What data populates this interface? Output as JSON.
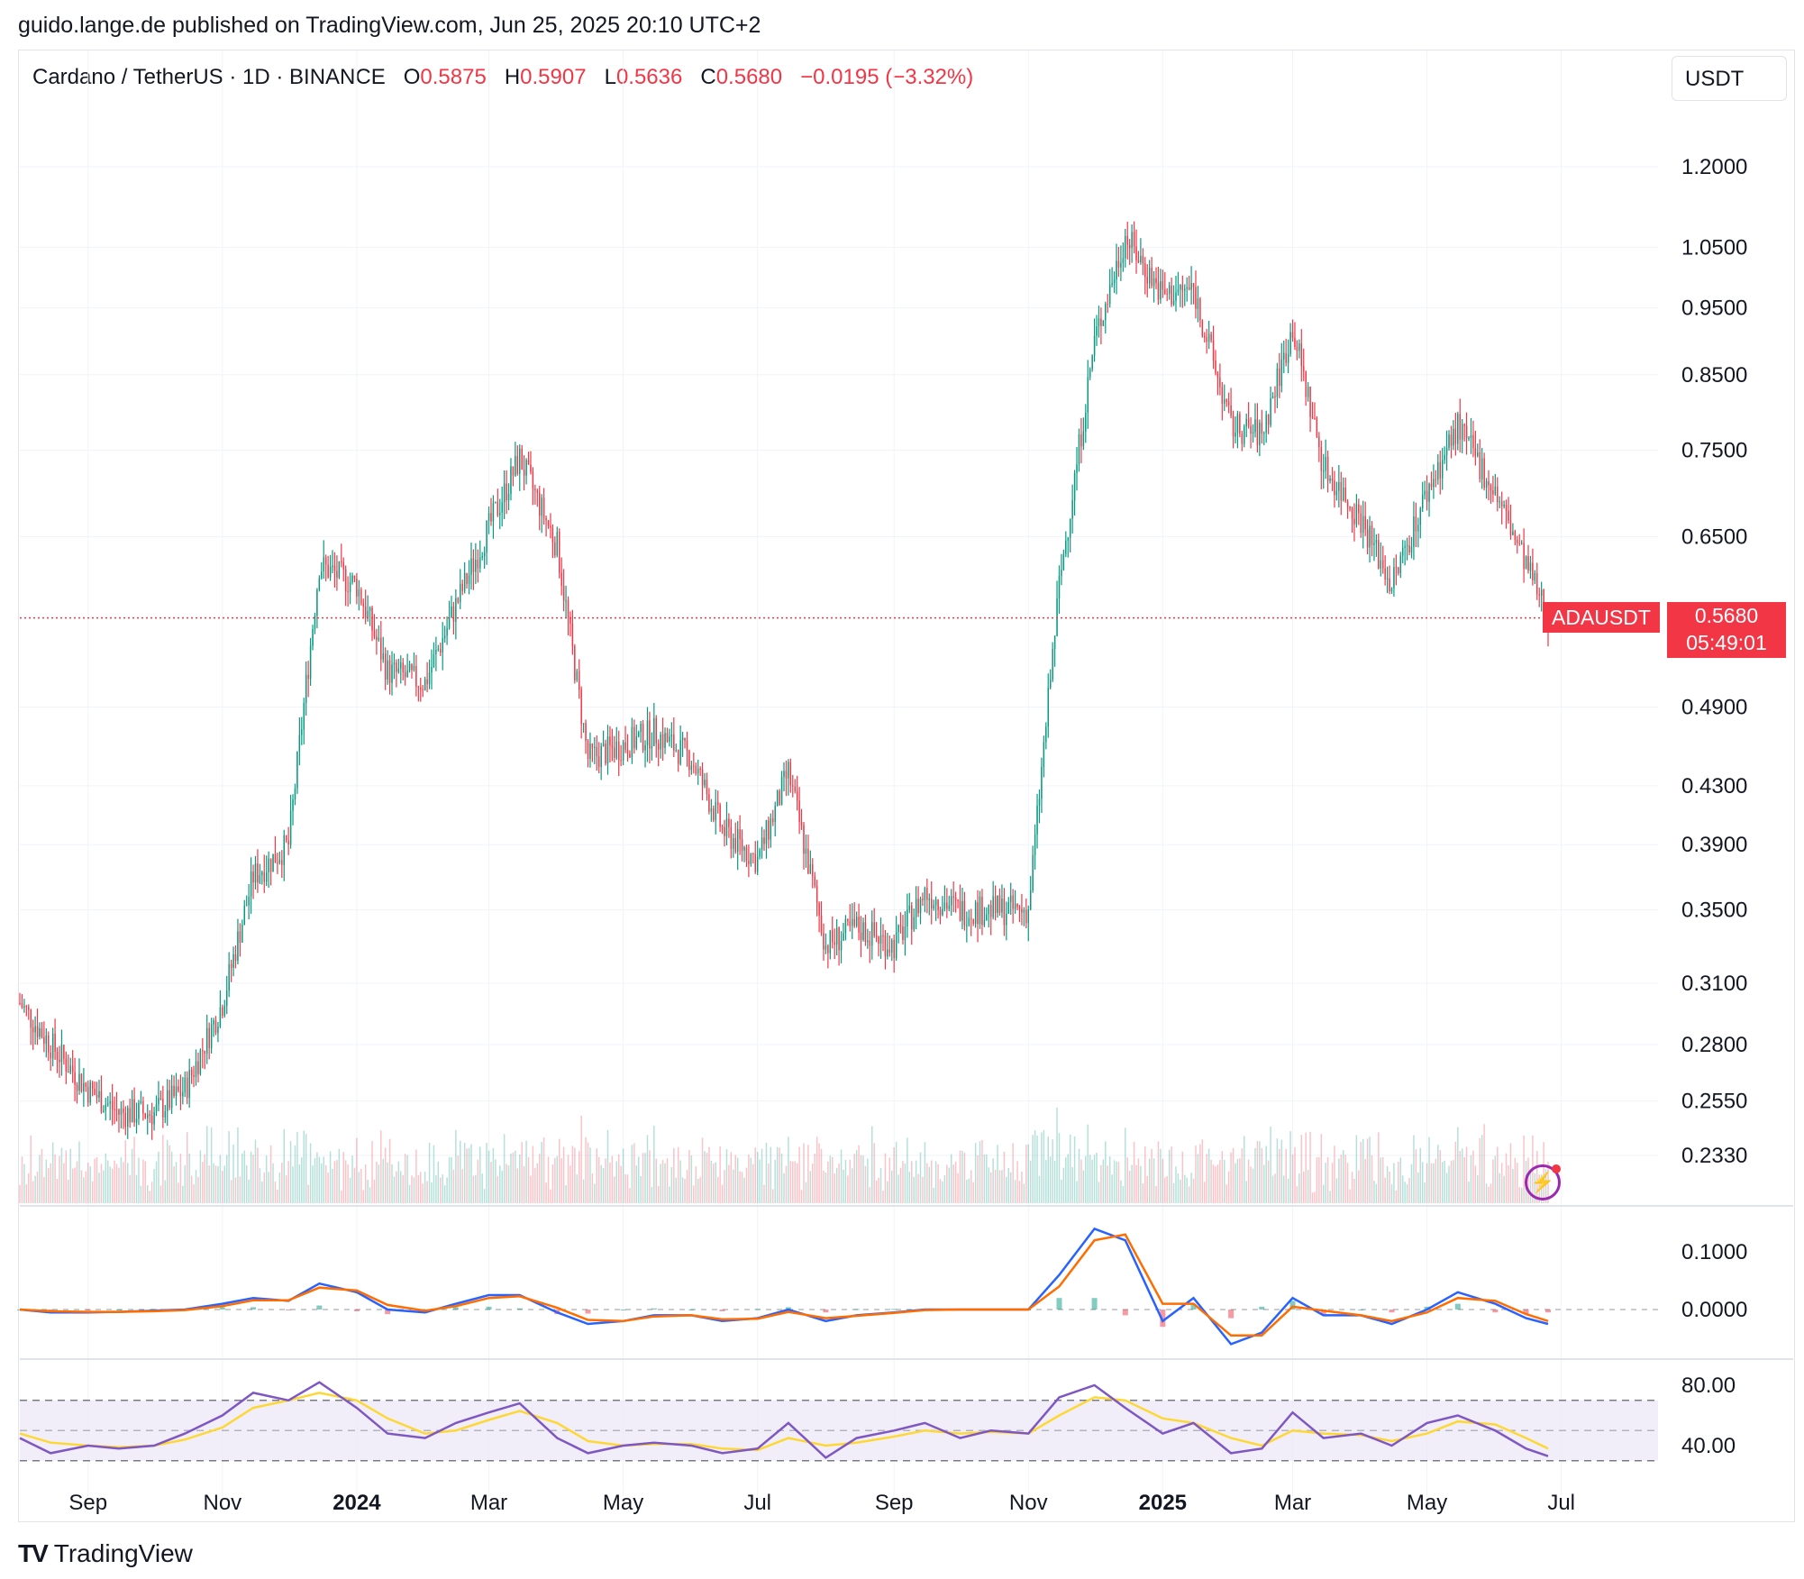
{
  "publisher": "guido.lange.de published on TradingView.com, Jun 25, 2025 20:10 UTC+2",
  "header": {
    "symbol": "Cardano / TetherUS · 1D · BINANCE",
    "open_label": "O",
    "open": "0.5875",
    "high_label": "H",
    "high": "0.5907",
    "low_label": "L",
    "low": "0.5636",
    "close_label": "C",
    "close": "0.5680",
    "change": "−0.0195 (−3.32%)"
  },
  "currency": "USDT",
  "last_price": {
    "symbol": "ADAUSDT",
    "price": "0.5680",
    "countdown": "05:49:01"
  },
  "brand": "TradingView",
  "colors": {
    "up": "#089981",
    "down": "#f23645",
    "macd": "#2962ff",
    "signal": "#ff6d00",
    "rsi": "#7e57c2",
    "rsi_ma": "#fdd835",
    "rsi_band": "#ede7f6"
  },
  "chart_data": [
    {
      "type": "candlestick",
      "title": "Cardano / TetherUS · 1D · BINANCE",
      "y_scale": "log",
      "y_ticks": [
        "1.2000",
        "1.0500",
        "0.9500",
        "0.8500",
        "0.7500",
        "0.6500",
        "0.4900",
        "0.4300",
        "0.3900",
        "0.3500",
        "0.3100",
        "0.2800",
        "0.2550",
        "0.2330"
      ],
      "x_ticks": [
        "Sep",
        "Nov",
        "2024",
        "Mar",
        "May",
        "Jul",
        "Sep",
        "Nov",
        "2025",
        "Mar",
        "May",
        "Jul"
      ],
      "x": [
        "2023-08-01",
        "2023-08-15",
        "2023-09-01",
        "2023-09-15",
        "2023-10-01",
        "2023-10-15",
        "2023-11-01",
        "2023-11-15",
        "2023-12-01",
        "2023-12-15",
        "2024-01-01",
        "2024-01-15",
        "2024-02-01",
        "2024-02-15",
        "2024-03-01",
        "2024-03-15",
        "2024-04-01",
        "2024-04-15",
        "2024-05-01",
        "2024-05-15",
        "2024-06-01",
        "2024-06-15",
        "2024-07-01",
        "2024-07-15",
        "2024-08-01",
        "2024-08-15",
        "2024-09-01",
        "2024-09-15",
        "2024-10-01",
        "2024-10-15",
        "2024-11-01",
        "2024-11-15",
        "2024-12-01",
        "2024-12-15",
        "2025-01-01",
        "2025-01-15",
        "2025-02-01",
        "2025-02-15",
        "2025-03-01",
        "2025-03-15",
        "2025-04-01",
        "2025-04-15",
        "2025-05-01",
        "2025-05-15",
        "2025-06-01",
        "2025-06-15",
        "2025-06-25"
      ],
      "close": [
        0.3,
        0.28,
        0.26,
        0.25,
        0.25,
        0.26,
        0.3,
        0.37,
        0.39,
        0.62,
        0.6,
        0.52,
        0.51,
        0.58,
        0.66,
        0.74,
        0.64,
        0.45,
        0.46,
        0.47,
        0.45,
        0.4,
        0.38,
        0.44,
        0.33,
        0.34,
        0.33,
        0.36,
        0.35,
        0.35,
        0.35,
        0.6,
        0.9,
        1.07,
        0.97,
        0.98,
        0.78,
        0.77,
        0.92,
        0.73,
        0.67,
        0.6,
        0.7,
        0.78,
        0.7,
        0.62,
        0.568
      ],
      "last": 0.568
    },
    {
      "type": "histogram",
      "title": "Volume",
      "note": "volume bars shown without scale"
    },
    {
      "type": "line",
      "title": "MACD",
      "y_ticks": [
        "0.1000",
        "0.0000"
      ],
      "series": [
        {
          "values": [
            0.0,
            -0.005,
            -0.005,
            -0.004,
            -0.002,
            0.0,
            0.01,
            0.02,
            0.015,
            0.045,
            0.03,
            0.0,
            -0.005,
            0.01,
            0.025,
            0.025,
            -0.005,
            -0.025,
            -0.02,
            -0.01,
            -0.01,
            -0.02,
            -0.015,
            0.0,
            -0.02,
            -0.01,
            -0.005,
            0.0,
            0.0,
            0.0,
            0.0,
            0.06,
            0.14,
            0.12,
            -0.02,
            0.02,
            -0.06,
            -0.04,
            0.02,
            -0.01,
            -0.01,
            -0.025,
            0.0,
            0.03,
            0.01,
            -0.015,
            -0.025
          ]
        },
        {
          "values": [
            0.0,
            -0.003,
            -0.004,
            -0.004,
            -0.003,
            -0.001,
            0.006,
            0.016,
            0.016,
            0.038,
            0.033,
            0.008,
            -0.002,
            0.006,
            0.02,
            0.023,
            0.003,
            -0.018,
            -0.02,
            -0.012,
            -0.01,
            -0.017,
            -0.016,
            -0.004,
            -0.015,
            -0.011,
            -0.006,
            -0.001,
            0.0,
            0.0,
            0.0,
            0.04,
            0.12,
            0.13,
            0.01,
            0.01,
            -0.045,
            -0.045,
            0.005,
            -0.002,
            -0.01,
            -0.02,
            -0.005,
            0.02,
            0.015,
            -0.008,
            -0.02
          ]
        }
      ]
    },
    {
      "type": "line",
      "title": "RSI",
      "y_ticks": [
        "80.00",
        "40.00"
      ],
      "band": [
        30,
        70
      ],
      "series": [
        {
          "values": [
            45,
            35,
            40,
            38,
            40,
            48,
            60,
            75,
            70,
            82,
            65,
            48,
            45,
            55,
            62,
            68,
            45,
            35,
            40,
            42,
            40,
            35,
            38,
            55,
            32,
            45,
            50,
            55,
            45,
            50,
            48,
            72,
            80,
            65,
            48,
            55,
            35,
            38,
            62,
            45,
            48,
            40,
            55,
            60,
            50,
            38,
            33
          ]
        },
        {
          "values": [
            48,
            42,
            40,
            39,
            40,
            44,
            52,
            65,
            70,
            75,
            70,
            58,
            48,
            50,
            57,
            63,
            55,
            43,
            40,
            41,
            41,
            38,
            37,
            45,
            40,
            42,
            46,
            50,
            48,
            49,
            48,
            60,
            72,
            70,
            58,
            55,
            45,
            40,
            50,
            48,
            47,
            43,
            48,
            56,
            54,
            45,
            38
          ]
        }
      ]
    }
  ]
}
